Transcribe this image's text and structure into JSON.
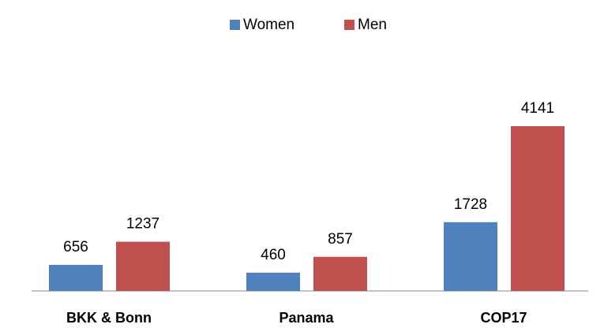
{
  "chart_data": {
    "type": "bar",
    "categories": [
      "BKK & Bonn",
      "Panama",
      "COP17"
    ],
    "series": [
      {
        "name": "Women",
        "color": "#4f81bd",
        "values": [
          656,
          460,
          1728
        ]
      },
      {
        "name": "Men",
        "color": "#c0504d",
        "values": [
          1237,
          857,
          4141
        ]
      }
    ],
    "legend": "top"
  }
}
